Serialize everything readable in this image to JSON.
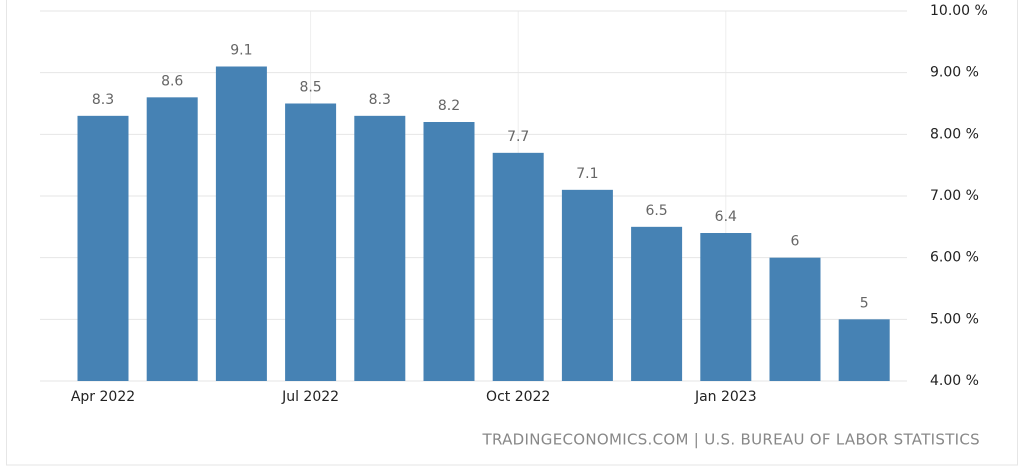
{
  "chart_data": {
    "type": "bar",
    "categories": [
      "Apr 2022",
      null,
      null,
      "Jul 2022",
      null,
      null,
      "Oct 2022",
      null,
      null,
      "Jan 2023",
      null,
      null
    ],
    "values": [
      8.3,
      8.6,
      9.1,
      8.5,
      8.3,
      8.2,
      7.7,
      7.1,
      6.5,
      6.4,
      6,
      5
    ],
    "color": "#4682b4",
    "ylim": [
      4,
      10
    ],
    "yticks": [
      {
        "value": 4,
        "label": "4.00 %"
      },
      {
        "value": 5,
        "label": "5.00 %"
      },
      {
        "value": 6,
        "label": "6.00 %"
      },
      {
        "value": 7,
        "label": "7.00 %"
      },
      {
        "value": 8,
        "label": "8.00 %"
      },
      {
        "value": 9,
        "label": "9.00 %"
      },
      {
        "value": 10,
        "label": "10.00 %"
      }
    ],
    "grid": true,
    "source": "TRADINGECONOMICS.COM | U.S. BUREAU OF LABOR STATISTICS"
  }
}
